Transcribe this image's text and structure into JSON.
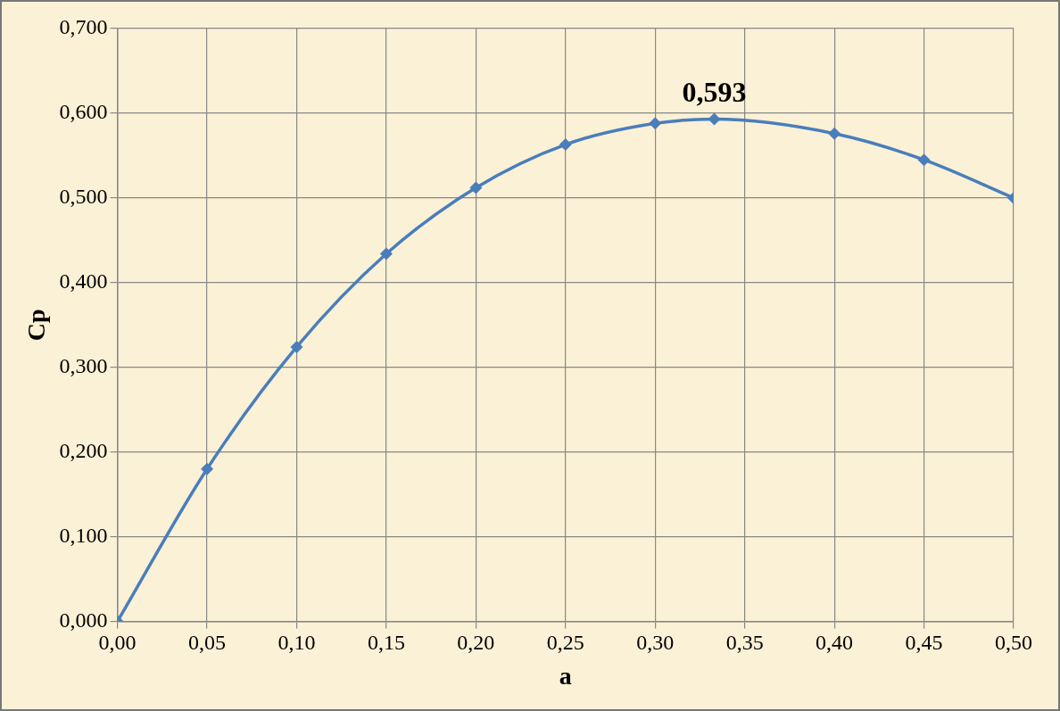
{
  "chart_data": {
    "type": "line",
    "xlabel": "a",
    "ylabel": "Cp",
    "x": [
      0,
      0.05,
      0.1,
      0.15,
      0.2,
      0.25,
      0.3,
      0.333,
      0.4,
      0.45,
      0.5
    ],
    "series": [
      {
        "color": "#4a7ebb",
        "values": [
          0,
          0.18,
          0.324,
          0.434,
          0.512,
          0.563,
          0.588,
          0.593,
          0.576,
          0.545,
          0.5
        ]
      }
    ],
    "xlim": [
      0,
      0.5
    ],
    "xticks": [
      {
        "value": 0,
        "label": "0,00"
      },
      {
        "value": 0.05,
        "label": "0,05"
      },
      {
        "value": 0.1,
        "label": "0,10"
      },
      {
        "value": 0.15,
        "label": "0,15"
      },
      {
        "value": 0.2,
        "label": "0,20"
      },
      {
        "value": 0.25,
        "label": "0,25"
      },
      {
        "value": 0.3,
        "label": "0,30"
      },
      {
        "value": 0.35,
        "label": "0,35"
      },
      {
        "value": 0.4,
        "label": "0,40"
      },
      {
        "value": 0.45,
        "label": "0,45"
      },
      {
        "value": 0.5,
        "label": "0,50"
      }
    ],
    "ylim": [
      0,
      0.7
    ],
    "yticks": [
      {
        "value": 0,
        "label": "0,000"
      },
      {
        "value": 0.1,
        "label": "0,100"
      },
      {
        "value": 0.2,
        "label": "0,200"
      },
      {
        "value": 0.3,
        "label": "0,300"
      },
      {
        "value": 0.4,
        "label": "0,400"
      },
      {
        "value": 0.5,
        "label": "0,500"
      },
      {
        "value": 0.6,
        "label": "0,600"
      },
      {
        "value": 0.7,
        "label": "0,700"
      }
    ],
    "annotations": [
      {
        "text": "0,593",
        "x": 0.333,
        "y": 0.593
      }
    ],
    "grid": true,
    "legend": false,
    "marker": "diamond",
    "line_style": "solid"
  }
}
